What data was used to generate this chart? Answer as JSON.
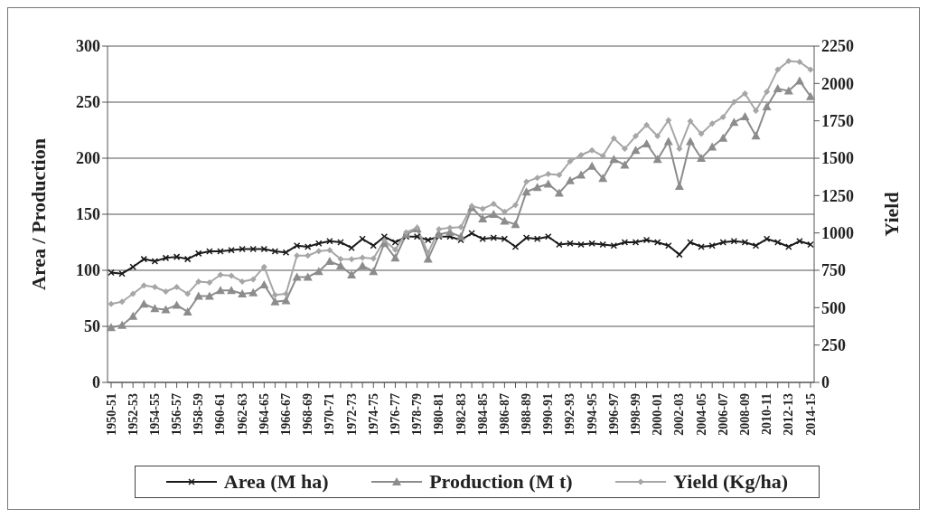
{
  "chart_data": {
    "type": "line",
    "ylabel": "Area / Production",
    "y2label": "Yield",
    "categories": [
      "1950-51",
      null,
      "1952-53",
      null,
      "1954-55",
      null,
      "1956-57",
      null,
      "1958-59",
      null,
      "1960-61",
      null,
      "1962-63",
      null,
      "1964-65",
      null,
      "1966-67",
      null,
      "1968-69",
      null,
      "1970-71",
      null,
      "1972-73",
      null,
      "1974-75",
      null,
      "1976-77",
      null,
      "1978-79",
      null,
      "1980-81",
      null,
      "1982-83",
      null,
      "1984-85",
      null,
      "1986-87",
      null,
      "1988-89",
      null,
      "1990-91",
      null,
      "1992-93",
      null,
      "1994-95",
      null,
      "1996-97",
      null,
      "1998-99",
      null,
      "2000-01",
      null,
      "2002-03",
      null,
      "2004-05",
      null,
      "2006-07",
      null,
      "2008-09",
      null,
      "2010-11",
      null,
      "2012-13",
      null,
      "2014-15"
    ],
    "series": [
      {
        "name": "Area (M ha)",
        "color": "#1a1a1a",
        "marker": "cross",
        "values": [
          98,
          97,
          103,
          110,
          108,
          111,
          112,
          110,
          115,
          117,
          117,
          118,
          119,
          119,
          119,
          117,
          116,
          122,
          121,
          124,
          126,
          125,
          120,
          128,
          122,
          130,
          125,
          130,
          130,
          127,
          130,
          130,
          127,
          133,
          128,
          129,
          128,
          121,
          129,
          128,
          130,
          123,
          124,
          123,
          124,
          123,
          122,
          125,
          125,
          127,
          125,
          122,
          114,
          125,
          121,
          122,
          125,
          126,
          125,
          122,
          128,
          125,
          121,
          126,
          123
        ]
      },
      {
        "name": "Production (M t)",
        "color": "#8c8c8c",
        "marker": "triangle",
        "values": [
          49,
          51,
          59,
          70,
          66,
          65,
          69,
          63,
          77,
          77,
          82,
          82,
          79,
          80,
          87,
          72,
          73,
          94,
          94,
          99,
          108,
          104,
          96,
          104,
          99,
          124,
          111,
          132,
          137,
          110,
          132,
          134,
          130,
          156,
          146,
          150,
          144,
          141,
          170,
          174,
          177,
          169,
          180,
          185,
          193,
          182,
          199,
          194,
          207,
          213,
          199,
          215,
          175,
          215,
          200,
          210,
          218,
          232,
          237,
          220,
          246,
          262,
          260,
          269,
          255
        ]
      },
      {
        "name": "Yield (Kg/ha)",
        "color": "#a6a6a6",
        "marker": "diamond",
        "axis": "y2",
        "values": [
          525,
          540,
          593,
          649,
          638,
          608,
          638,
          593,
          675,
          668,
          720,
          713,
          675,
          690,
          773,
          585,
          593,
          848,
          848,
          878,
          885,
          826,
          824,
          834,
          828,
          951,
          887,
          1004,
          1035,
          866,
          1025,
          1035,
          1039,
          1179,
          1162,
          1194,
          1141,
          1187,
          1342,
          1369,
          1394,
          1388,
          1479,
          1521,
          1553,
          1515,
          1633,
          1563,
          1648,
          1722,
          1648,
          1754,
          1563,
          1748,
          1663,
          1732,
          1775,
          1876,
          1933,
          1817,
          1944,
          2092,
          2150,
          2144,
          2092
        ]
      }
    ],
    "ylim": [
      0,
      300
    ],
    "yticks": [
      0,
      50,
      100,
      150,
      200,
      250,
      300
    ],
    "y2lim": [
      0,
      2250
    ],
    "y2ticks": [
      0,
      250,
      500,
      750,
      1000,
      1250,
      1500,
      1750,
      2000,
      2250
    ],
    "grid": "y",
    "legend": "bottom"
  }
}
